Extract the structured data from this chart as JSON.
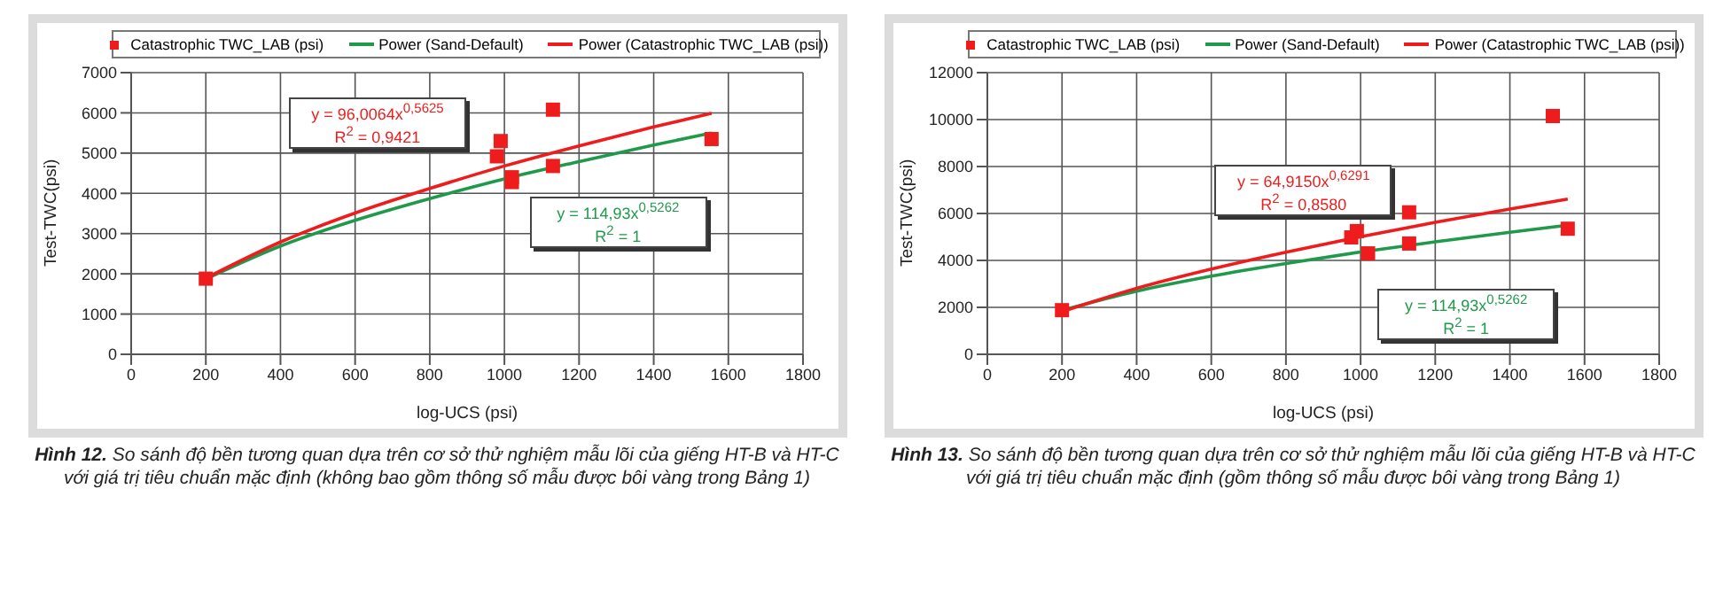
{
  "chart_data": [
    {
      "type": "scatter",
      "xlabel": "log-UCS (psi)",
      "ylabel": "Test-TWC(psi)",
      "xlim": [
        0,
        1800
      ],
      "xticks": [
        0,
        200,
        400,
        600,
        800,
        1000,
        1200,
        1400,
        1600,
        1800
      ],
      "ylim": [
        0,
        7000
      ],
      "yticks": [
        0,
        1000,
        2000,
        3000,
        4000,
        5000,
        6000,
        7000
      ],
      "grid": true,
      "legend": "top",
      "series": [
        {
          "name": "Catastrophic TWC_LAB (psi)",
          "marker": "square",
          "color": "#ee1c1c",
          "x": [
            200,
            980,
            990,
            1020,
            1020,
            1130,
            1130,
            1555
          ],
          "values": [
            1880,
            4920,
            5300,
            4400,
            4280,
            6080,
            4680,
            5350
          ]
        },
        {
          "name": "Power (Sand-Default)",
          "type": "line",
          "marker": "none",
          "color": "#1e9a4a",
          "x": [
            200,
            400,
            600,
            800,
            1000,
            1200,
            1400,
            1555
          ],
          "values": [
            1870,
            2690,
            3330,
            3870,
            4360,
            4790,
            5200,
            5500
          ]
        },
        {
          "name": "Power (Catastrophic TWC_LAB (psi))",
          "type": "line",
          "marker": "none",
          "color": "#ee1c1c",
          "x": [
            200,
            400,
            600,
            800,
            1000,
            1200,
            1400,
            1555
          ],
          "values": [
            1890,
            2790,
            3510,
            4120,
            4680,
            5180,
            5650,
            5990
          ]
        }
      ],
      "annotations": [
        "y = 96,0064x$^{0,5625}$",
        "R$^{2}$ = 0,9421",
        "y = 114,93x$^{0,5262}$",
        "R$^{2}$ = 1",
        "Hình 12. So sánh độ bền tương quan dựa trên cơ sở thử nghiệm mẫu lõi của giếng HT-B và HT-C với giá trị tiêu chuẩn mặc định (không bao gồm thông số mẫu được bôi vàng trong Bảng 1)"
      ]
    },
    {
      "type": "scatter",
      "xlabel": "log-UCS (psi)",
      "ylabel": "Test-TWC(psi)",
      "xlim": [
        0,
        1800
      ],
      "xticks": [
        0,
        200,
        400,
        600,
        800,
        1000,
        1200,
        1400,
        1600,
        1800
      ],
      "ylim": [
        0,
        12000
      ],
      "yticks": [
        0,
        2000,
        4000,
        6000,
        8000,
        10000,
        12000
      ],
      "grid": true,
      "legend": "top",
      "series": [
        {
          "name": "Catastrophic TWC_LAB (psi)",
          "marker": "square",
          "color": "#ee1c1c",
          "x": [
            200,
            975,
            990,
            1020,
            1130,
            1130,
            1515,
            1555
          ],
          "values": [
            1880,
            4980,
            5250,
            4300,
            6050,
            4720,
            10150,
            5350
          ]
        },
        {
          "name": "Power (Sand-Default)",
          "type": "line",
          "marker": "none",
          "color": "#1e9a4a",
          "x": [
            200,
            400,
            600,
            800,
            1000,
            1200,
            1400,
            1555
          ],
          "values": [
            1870,
            2690,
            3330,
            3870,
            4360,
            4790,
            5200,
            5500
          ]
        },
        {
          "name": "Power (Catastrophic TWC_LAB (psi))",
          "type": "line",
          "marker": "none",
          "color": "#ee1c1c",
          "x": [
            200,
            400,
            600,
            800,
            1000,
            1200,
            1400,
            1555
          ],
          "values": [
            1820,
            2810,
            3630,
            4350,
            5010,
            5620,
            6190,
            6610
          ]
        }
      ],
      "annotations": [
        "y = 64,9150x$^{0,6291}$",
        "R$^{2}$ = 0,8580",
        "y = 114,93x$^{0,5262}$",
        "R$^{2}$ = 1",
        "Hình 13. So sánh độ bền tương quan dựa trên cơ sở thử nghiệm mẫu lõi của giếng HT-B và HT-C với giá trị tiêu chuẩn mặc định (gồm thông số mẫu được bôi vàng trong Bảng 1)"
      ]
    }
  ]
}
